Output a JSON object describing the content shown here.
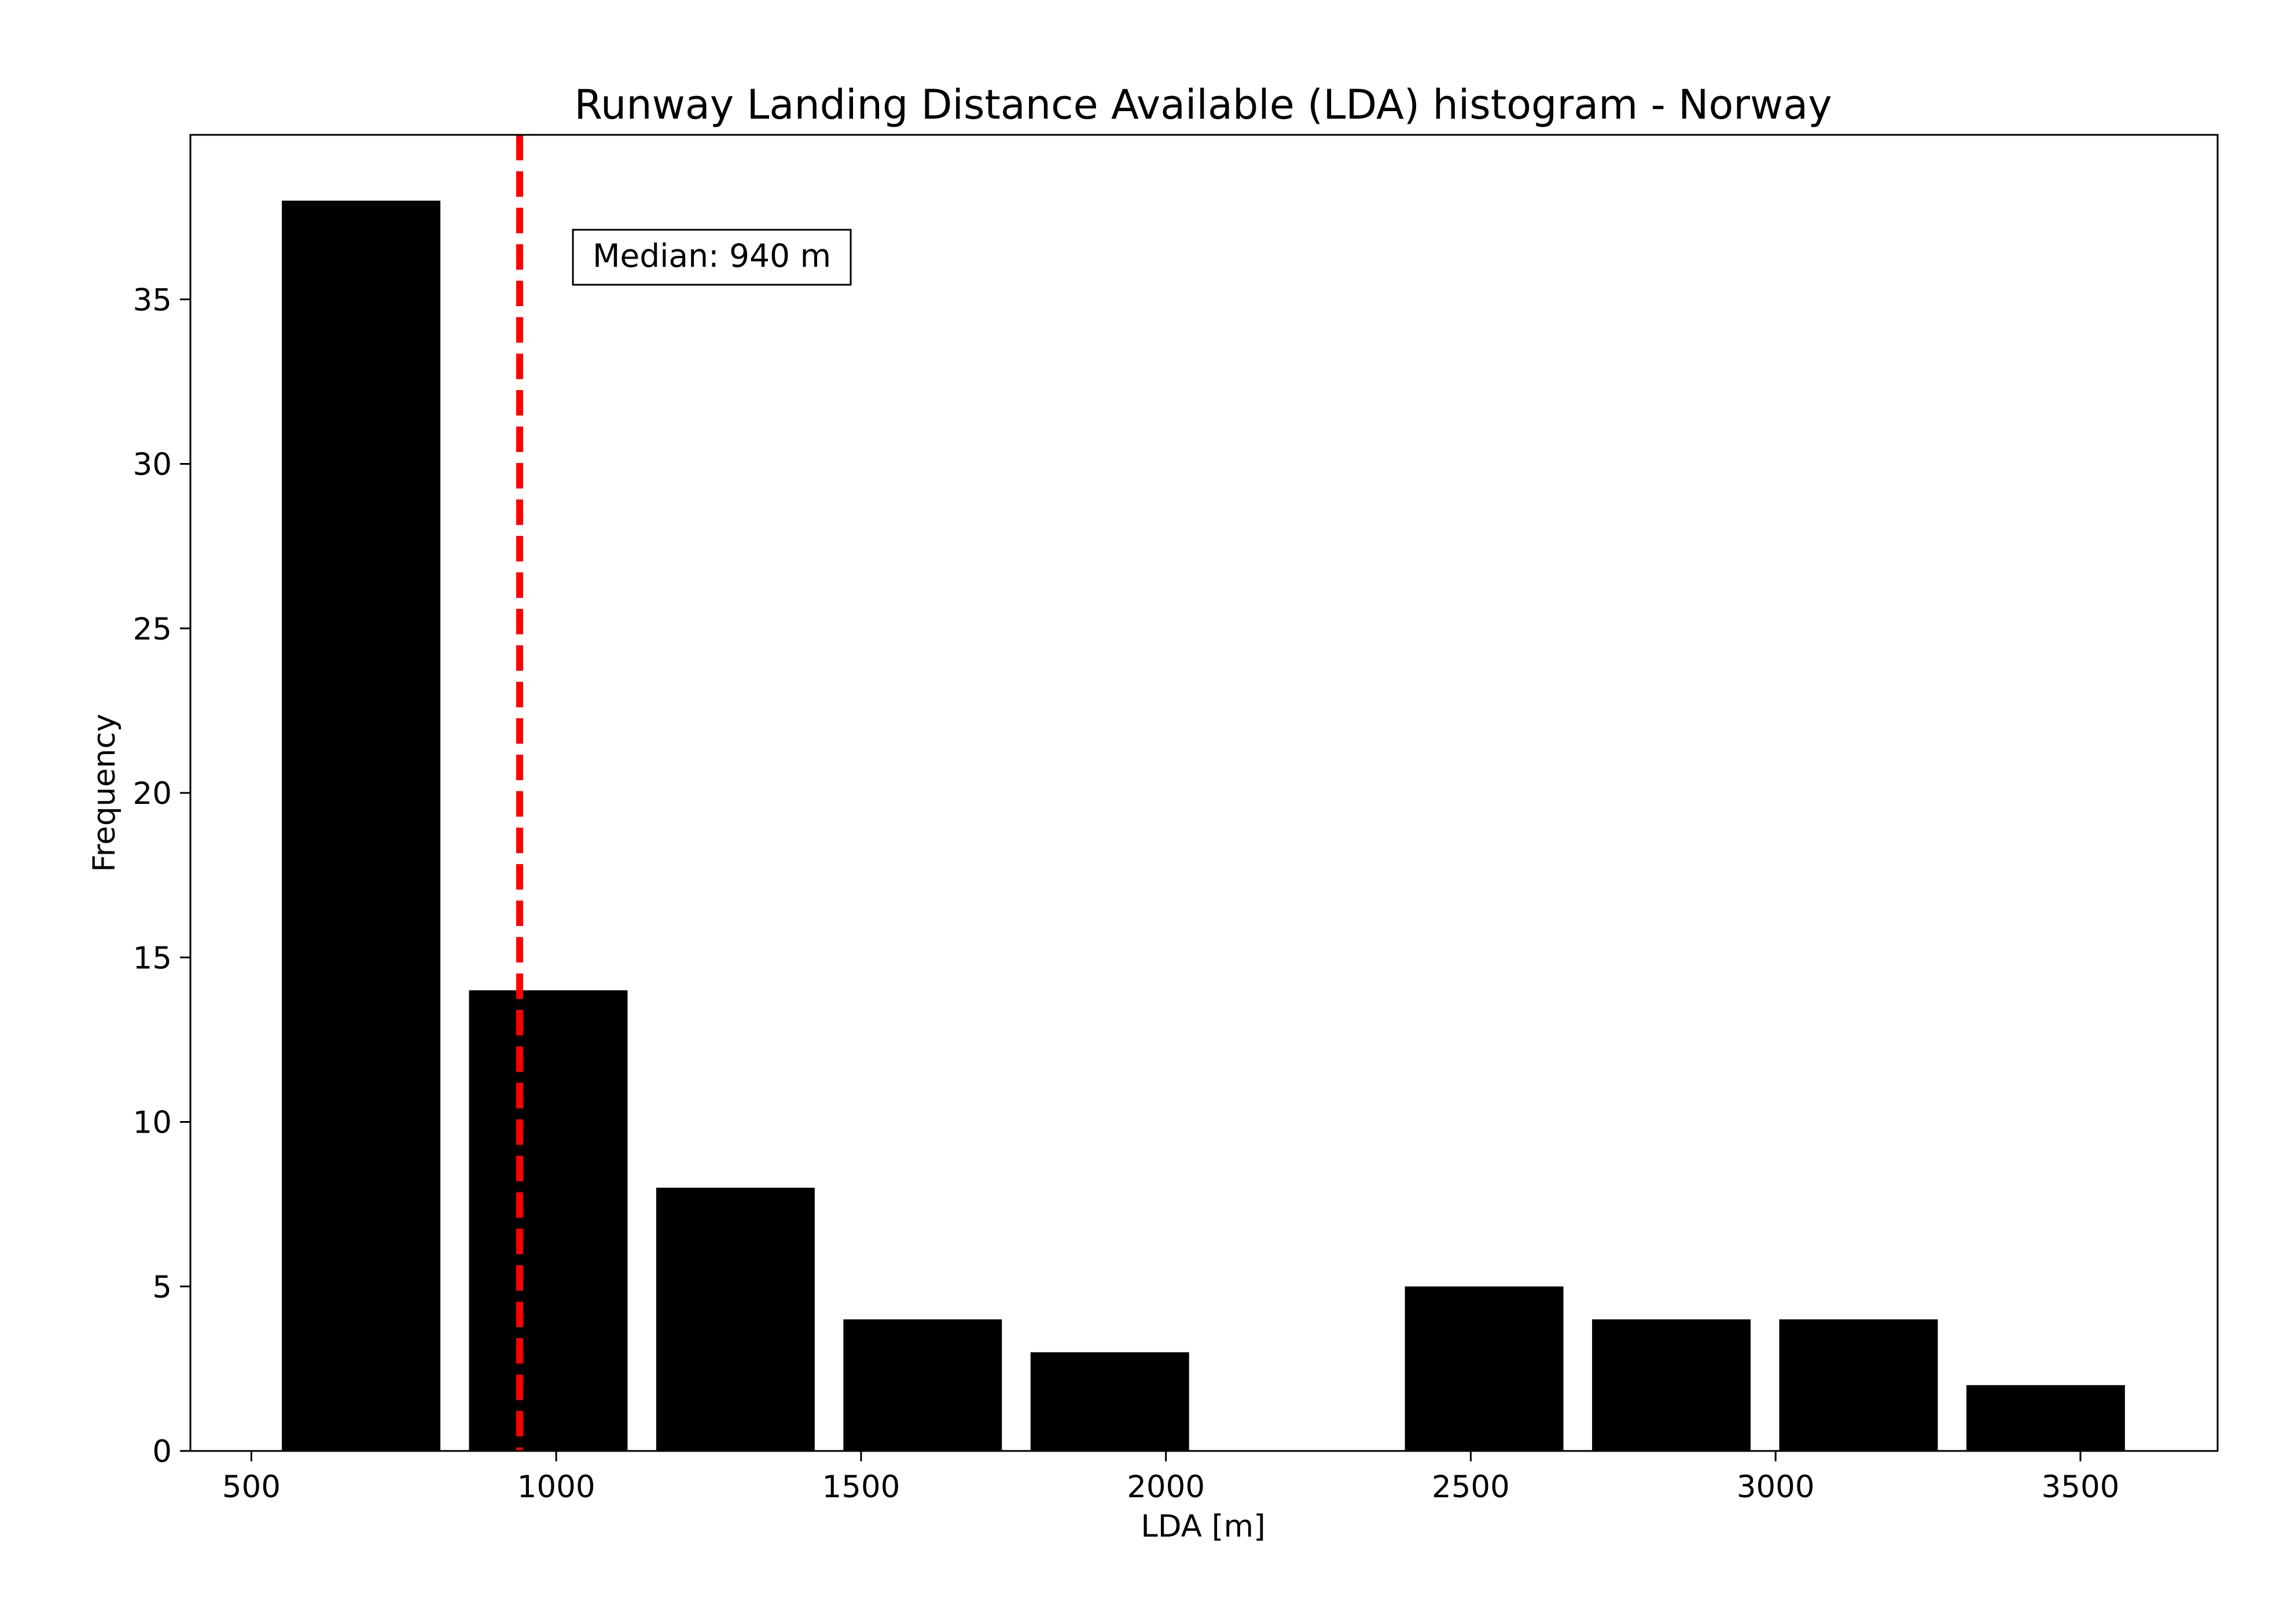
{
  "chart_data": {
    "type": "bar",
    "subtype": "histogram",
    "title": "Runway Landing Distance Available (LDA) histogram - Norway",
    "xlabel": "LDA [m]",
    "ylabel": "Frequency",
    "xlim": [
      400,
      3725
    ],
    "ylim": [
      0,
      40
    ],
    "xticks": [
      500,
      1000,
      1500,
      2000,
      2500,
      3000,
      3500
    ],
    "yticks": [
      0,
      5,
      10,
      15,
      20,
      25,
      30,
      35
    ],
    "bins": [
      {
        "start": 550,
        "end": 810,
        "count": 38
      },
      {
        "start": 857,
        "end": 1117,
        "count": 14
      },
      {
        "start": 1164,
        "end": 1424,
        "count": 8
      },
      {
        "start": 1471,
        "end": 1731,
        "count": 4
      },
      {
        "start": 1778,
        "end": 2038,
        "count": 3
      },
      {
        "start": 2085,
        "end": 2345,
        "count": 0
      },
      {
        "start": 2392,
        "end": 2652,
        "count": 5
      },
      {
        "start": 2699,
        "end": 2959,
        "count": 4
      },
      {
        "start": 3006,
        "end": 3266,
        "count": 4
      },
      {
        "start": 3313,
        "end": 3573,
        "count": 2
      }
    ],
    "bar_color": "#000000",
    "median": {
      "value": 940,
      "color": "#ff0000",
      "style": "dashed",
      "label": "Median: 940 m"
    },
    "grid": false,
    "legend": "none"
  }
}
